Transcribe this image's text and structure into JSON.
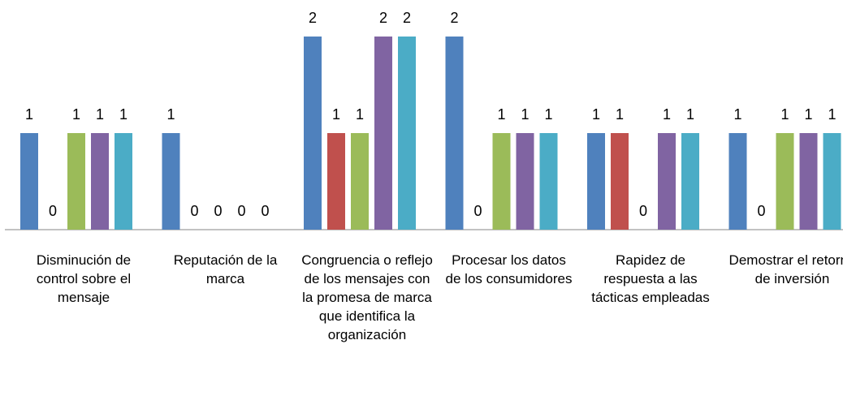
{
  "chart_data": {
    "type": "bar",
    "categories": [
      "Disminución de control sobre el mensaje",
      "Reputación de la marca",
      "Congruencia o reflejo de los mensajes con la promesa de marca que identifica la organización",
      "Procesar los datos de los consumidores",
      "Rapidez de respuesta a las tácticas empleadas",
      "Demostrar el retorno de inversión"
    ],
    "series": [
      {
        "color": "#4f81bd",
        "values": [
          1,
          1,
          2,
          2,
          1,
          1
        ]
      },
      {
        "color": "#c0504d",
        "values": [
          0,
          0,
          1,
          0,
          1,
          0
        ]
      },
      {
        "color": "#9bbb59",
        "values": [
          1,
          0,
          1,
          1,
          0,
          1
        ]
      },
      {
        "color": "#8064a2",
        "values": [
          1,
          0,
          2,
          1,
          1,
          1
        ]
      },
      {
        "color": "#4bacc6",
        "values": [
          1,
          0,
          2,
          1,
          1,
          1
        ]
      }
    ],
    "ylim": [
      0,
      2
    ]
  }
}
